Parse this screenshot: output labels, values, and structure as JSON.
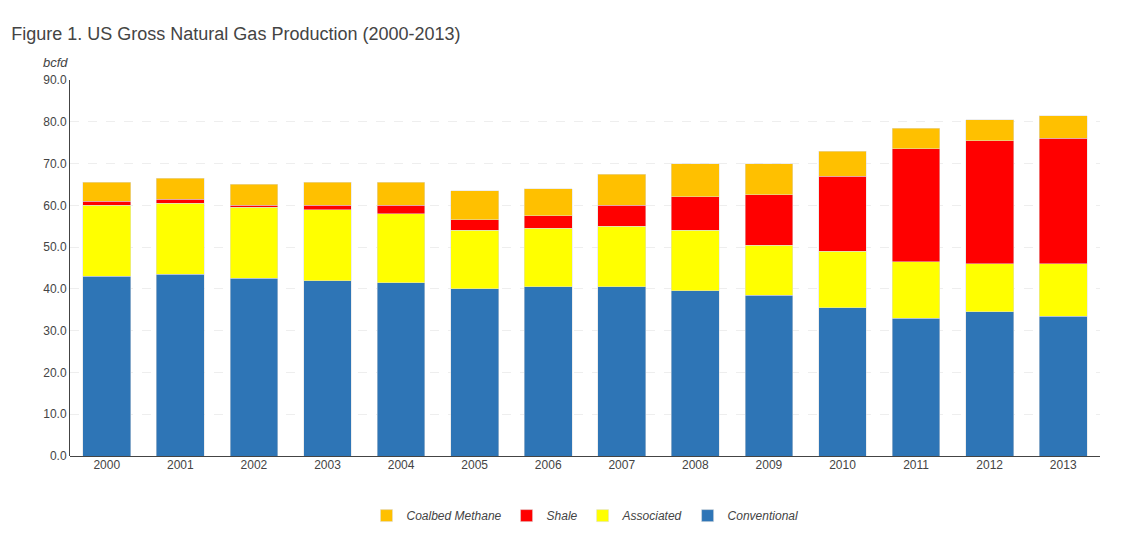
{
  "chart_data": {
    "type": "bar",
    "title": "Figure 1. US Gross Natural Gas Production (2000-2013)",
    "ylabel": "bcfd",
    "categories": [
      "2000",
      "2001",
      "2002",
      "2003",
      "2004",
      "2005",
      "2006",
      "2007",
      "2008",
      "2009",
      "2010",
      "2011",
      "2012",
      "2013"
    ],
    "series": [
      {
        "name": "Conventional",
        "color": "#2E75B6",
        "values": [
          43.0,
          43.5,
          42.5,
          42.0,
          41.5,
          40.0,
          40.5,
          40.5,
          39.5,
          38.5,
          35.5,
          33.0,
          34.5,
          33.5
        ]
      },
      {
        "name": "Associated",
        "color": "#FFFF00",
        "values": [
          17.0,
          17.0,
          17.0,
          17.0,
          16.5,
          14.0,
          14.0,
          14.5,
          14.5,
          12.0,
          13.5,
          13.5,
          11.5,
          12.5
        ]
      },
      {
        "name": "Shale",
        "color": "#FF0000",
        "values": [
          1.0,
          1.0,
          0.5,
          1.0,
          2.0,
          2.5,
          3.0,
          5.0,
          8.0,
          12.0,
          18.0,
          27.0,
          29.5,
          30.0
        ]
      },
      {
        "name": "Coalbed Methane",
        "color": "#FFC000",
        "values": [
          4.5,
          5.0,
          5.0,
          5.5,
          5.5,
          7.0,
          6.5,
          7.5,
          8.0,
          7.5,
          6.0,
          5.0,
          5.0,
          5.5
        ]
      }
    ],
    "stacked": true,
    "ylim": [
      0,
      90
    ],
    "yticks": [
      {
        "value": 0,
        "label": "0.0"
      },
      {
        "value": 10,
        "label": "10.0"
      },
      {
        "value": 20,
        "label": "20.0"
      },
      {
        "value": 30,
        "label": "30.0"
      },
      {
        "value": 40,
        "label": "40.0"
      },
      {
        "value": 50,
        "label": "50.0"
      },
      {
        "value": 60,
        "label": "60.0"
      },
      {
        "value": 70,
        "label": "70.0"
      },
      {
        "value": 80,
        "label": "80.0"
      },
      {
        "value": 90,
        "label": "90.0"
      }
    ],
    "grid": true,
    "legend": "bottom"
  }
}
